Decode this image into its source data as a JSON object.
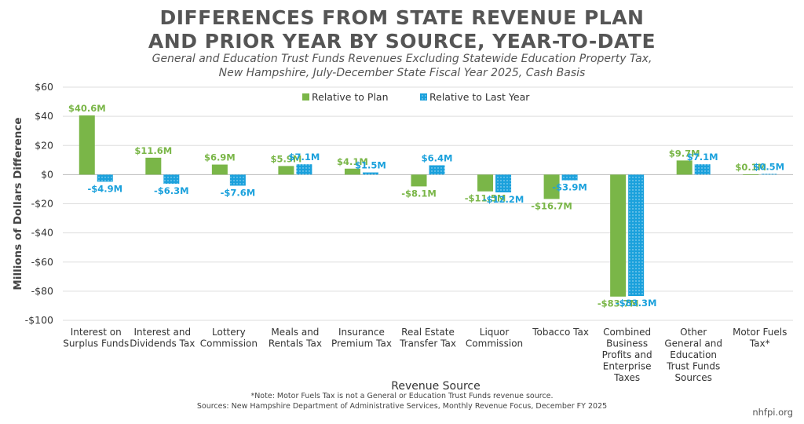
{
  "title_lines": [
    "DIFFERENCES FROM STATE REVENUE PLAN",
    "AND PRIOR YEAR BY SOURCE, YEAR-TO-DATE"
  ],
  "subtitle_lines": [
    "General and Education Trust Funds Revenues Excluding Statewide Education Property Tax,",
    "New Hampshire, July-December State Fiscal Year 2025, Cash Basis"
  ],
  "footnote": "*Note: Motor Fuels Tax is not a General or Education Trust Funds revenue source.",
  "sources": "Sources: New Hampshire Department of Administrative Services, Monthly Revenue Focus, December FY 2025",
  "brand": "nhfpi.org",
  "colors": {
    "plan": "#7ab648",
    "last_year": "#1ba1dc",
    "plan_label": "#7ab648",
    "last_year_label": "#1ba1dc",
    "axis_text": "#333333",
    "grid": "#dddddd"
  },
  "chart_data": {
    "type": "bar",
    "title": "DIFFERENCES FROM STATE REVENUE PLAN AND PRIOR YEAR BY SOURCE, YEAR-TO-DATE",
    "xlabel": "Revenue Source",
    "ylabel": "Millions of Dollars Difference",
    "ylim": [
      -100,
      60
    ],
    "yticks": [
      60,
      40,
      20,
      0,
      -20,
      -40,
      -60,
      -80,
      -100
    ],
    "ytick_labels": [
      "$60",
      "$40",
      "$20",
      "$0",
      "-$20",
      "-$40",
      "-$60",
      "-$80",
      "-$100"
    ],
    "grid": true,
    "legend_position": "top-center",
    "categories": [
      [
        "Interest on",
        "Surplus Funds"
      ],
      [
        "Interest and",
        "Dividends Tax"
      ],
      [
        "Lottery",
        "Commission"
      ],
      [
        "Meals and",
        "Rentals Tax"
      ],
      [
        "Insurance",
        "Premium Tax"
      ],
      [
        "Real Estate",
        "Transfer Tax"
      ],
      [
        "Liquor",
        "Commission"
      ],
      [
        "Tobacco Tax"
      ],
      [
        "Combined",
        "Business",
        "Profits and",
        "Enterprise",
        "Taxes"
      ],
      [
        "Other",
        "General and",
        "Education",
        "Trust Funds",
        "Sources"
      ],
      [
        "Motor Fuels",
        "Tax*"
      ]
    ],
    "series": [
      {
        "name": "Relative to Plan",
        "values": [
          40.6,
          11.6,
          6.9,
          5.9,
          4.1,
          -8.1,
          -11.5,
          -16.7,
          -83.7,
          9.7,
          0.1
        ],
        "labels": [
          "$40.6M",
          "$11.6M",
          "$6.9M",
          "$5.9M",
          "$4.1M",
          "-$8.1M",
          "-$11.5M",
          "-$16.7M",
          "-$83.7M",
          "$9.7M",
          "$0.1M"
        ]
      },
      {
        "name": "Relative to Last Year",
        "values": [
          -4.9,
          -6.3,
          -7.6,
          7.1,
          1.5,
          6.4,
          -12.2,
          -3.9,
          -83.3,
          7.1,
          0.5
        ],
        "labels": [
          "-$4.9M",
          "-$6.3M",
          "-$7.6M",
          "$7.1M",
          "$1.5M",
          "$6.4M",
          "-$12.2M",
          "-$3.9M",
          "-$83.3M",
          "$7.1M",
          "$0.5M"
        ]
      }
    ]
  }
}
